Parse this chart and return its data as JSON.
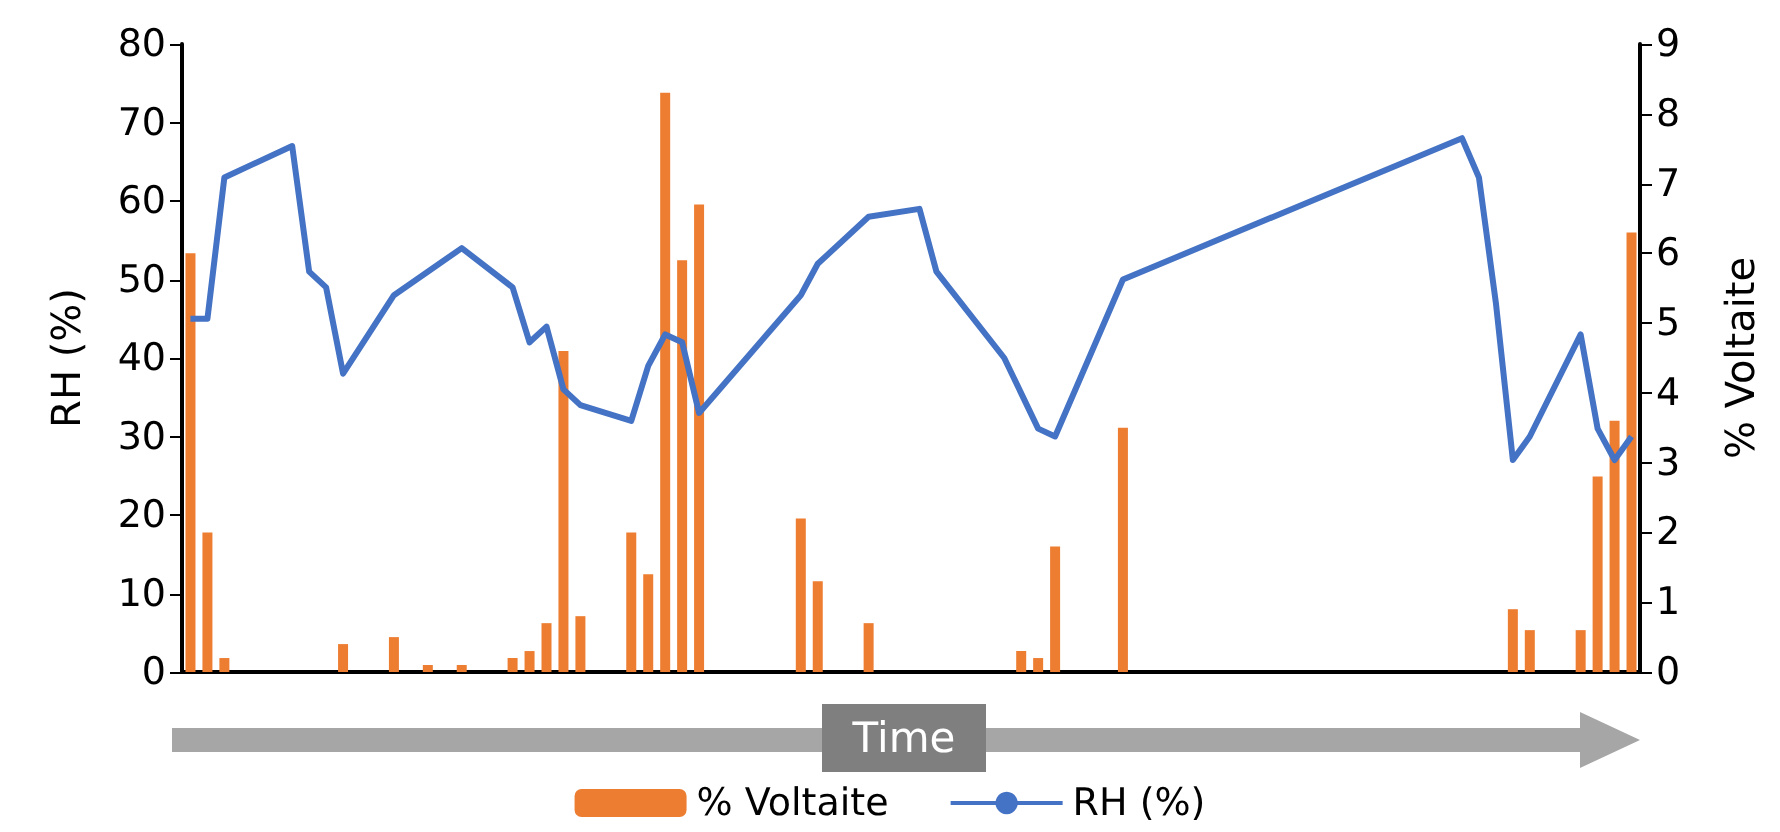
{
  "chart_data": {
    "type": "bar",
    "xlabel": "Time",
    "ylabel": "RH (%)",
    "y2label": "% Voltaite",
    "categories": [
      null,
      null,
      null,
      null,
      null,
      null,
      null,
      null,
      null,
      null,
      null,
      null,
      null,
      null,
      null,
      null,
      null,
      null,
      null,
      null,
      null,
      null,
      null,
      null,
      null,
      null,
      null,
      null,
      null,
      null,
      null,
      null,
      null,
      null,
      null,
      null,
      null,
      null,
      null,
      null,
      null,
      null,
      null,
      null,
      null,
      null,
      null,
      null,
      null,
      null,
      null,
      null,
      null,
      null,
      null,
      null,
      null,
      null,
      null,
      null,
      null,
      null,
      null,
      null,
      null,
      null,
      null,
      null,
      null,
      null,
      null,
      null,
      null,
      null,
      null,
      null,
      null,
      null,
      null,
      null,
      null,
      null,
      null,
      null,
      null,
      null
    ],
    "series": [
      {
        "name": "% Voltaite",
        "axis": "y2",
        "color": "#ed7d31",
        "values": [
          6.0,
          2.0,
          0.2,
          null,
          null,
          null,
          null,
          null,
          null,
          0.4,
          null,
          null,
          0.5,
          null,
          0.1,
          null,
          0.1,
          null,
          null,
          0.2,
          0.3,
          0.7,
          4.6,
          0.8,
          null,
          null,
          2.0,
          1.4,
          8.3,
          5.9,
          6.7,
          null,
          null,
          null,
          null,
          null,
          2.2,
          1.3,
          null,
          null,
          0.7,
          null,
          null,
          null,
          null,
          null,
          null,
          null,
          null,
          0.3,
          0.2,
          1.8,
          null,
          null,
          null,
          3.5,
          null,
          null,
          null,
          null,
          null,
          null,
          null,
          null,
          null,
          null,
          null,
          null,
          null,
          null,
          null,
          null,
          null,
          null,
          null,
          null,
          null,
          null,
          0.9,
          0.6,
          null,
          null,
          0.6,
          2.8,
          3.6,
          6.3
        ]
      },
      {
        "name": "RH (%)",
        "type": "line",
        "color": "#4472c4",
        "values": [
          45,
          45,
          63,
          null,
          null,
          null,
          67,
          51,
          49,
          38,
          null,
          null,
          48,
          null,
          null,
          null,
          54,
          null,
          null,
          49,
          42,
          44,
          36,
          34,
          null,
          null,
          32,
          39,
          43,
          42,
          33,
          null,
          null,
          null,
          null,
          null,
          48,
          52,
          null,
          null,
          58,
          null,
          null,
          59,
          51,
          null,
          null,
          null,
          40,
          null,
          31,
          30,
          null,
          null,
          null,
          50,
          null,
          null,
          null,
          null,
          null,
          null,
          null,
          null,
          null,
          null,
          null,
          null,
          null,
          null,
          null,
          null,
          null,
          null,
          null,
          68,
          63,
          47,
          27,
          30,
          null,
          null,
          43,
          31,
          27,
          30
        ]
      }
    ],
    "ylim": [
      0,
      80
    ],
    "yticks": [
      0,
      10,
      20,
      30,
      40,
      50,
      60,
      70,
      80
    ],
    "y2lim": [
      0,
      9
    ],
    "y2ticks": [
      0,
      1,
      2,
      3,
      4,
      5,
      6,
      7,
      8,
      9
    ],
    "marker": "none",
    "line_style": "solid",
    "grid": false,
    "legend": "bottom"
  }
}
